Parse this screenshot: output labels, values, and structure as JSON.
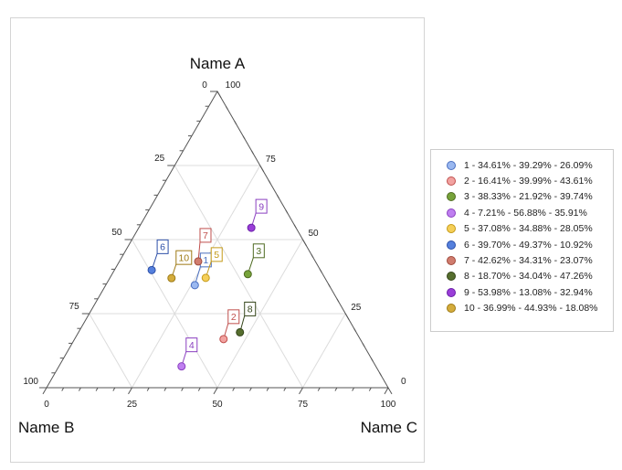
{
  "chart_data": {
    "type": "ternary-scatter",
    "axes": {
      "a": {
        "title": "Name A",
        "ticks": [
          "0",
          "25",
          "50",
          "75",
          "100"
        ],
        "tick_labels_top": "100"
      },
      "b": {
        "title": "Name B",
        "ticks": [
          "100",
          "75",
          "50",
          "25",
          "0"
        ]
      },
      "c": {
        "title": "Name C",
        "ticks": [
          "0",
          "25",
          "50",
          "75",
          "100"
        ]
      }
    },
    "grid": true,
    "legend_position": "right",
    "points": [
      {
        "label": "1",
        "legend": "1 - 34.61% - 39.29% - 26.09%",
        "a": 34.61,
        "b": 39.29,
        "c": 26.09,
        "fill": "#9ab8f0",
        "stroke": "#4a6fc0"
      },
      {
        "label": "2",
        "legend": "2 - 16.41% - 39.99% - 43.61%",
        "a": 16.41,
        "b": 39.99,
        "c": 43.61,
        "fill": "#f2a2a0",
        "stroke": "#c0504d"
      },
      {
        "label": "3",
        "legend": "3 - 38.33% - 21.92% - 39.74%",
        "a": 38.33,
        "b": 21.92,
        "c": 39.74,
        "fill": "#77a33a",
        "stroke": "#4f6b22"
      },
      {
        "label": "4",
        "legend": "4 - 7.21% - 56.88% - 35.91%",
        "a": 7.21,
        "b": 56.88,
        "c": 35.91,
        "fill": "#bf7ff0",
        "stroke": "#8a3fc0"
      },
      {
        "label": "5",
        "legend": "5 - 37.08% - 34.88% - 28.05%",
        "a": 37.08,
        "b": 34.88,
        "c": 28.05,
        "fill": "#f5cf58",
        "stroke": "#c49a18"
      },
      {
        "label": "6",
        "legend": "6 - 39.70% - 49.37% - 10.92%",
        "a": 39.7,
        "b": 49.37,
        "c": 10.92,
        "fill": "#5580dd",
        "stroke": "#2c4fa8"
      },
      {
        "label": "7",
        "legend": "7 - 42.62% - 34.31% - 23.07%",
        "a": 42.62,
        "b": 34.31,
        "c": 23.07,
        "fill": "#d07c6e",
        "stroke": "#a04a3c"
      },
      {
        "label": "8",
        "legend": "8 - 18.70% - 34.04% - 47.26%",
        "a": 18.7,
        "b": 34.04,
        "c": 47.26,
        "fill": "#566e2e",
        "stroke": "#34451a"
      },
      {
        "label": "9",
        "legend": "9 - 53.98% - 13.08% - 32.94%",
        "a": 53.98,
        "b": 13.08,
        "c": 32.94,
        "fill": "#9a3ed8",
        "stroke": "#6a1ea8"
      },
      {
        "label": "10",
        "legend": "10 - 36.99% - 44.93% - 18.08%",
        "a": 36.99,
        "b": 44.93,
        "c": 18.08,
        "fill": "#d4ac3c",
        "stroke": "#9e7a14"
      }
    ],
    "label_colors": {
      "1": "#4a6fc0",
      "2": "#c0504d",
      "3": "#4f6b22",
      "4": "#8a3fc0",
      "5": "#c49a18",
      "6": "#2c4fa8",
      "7": "#c0504d",
      "8": "#34451a",
      "9": "#8a3fc0",
      "10": "#9e7a14"
    }
  }
}
